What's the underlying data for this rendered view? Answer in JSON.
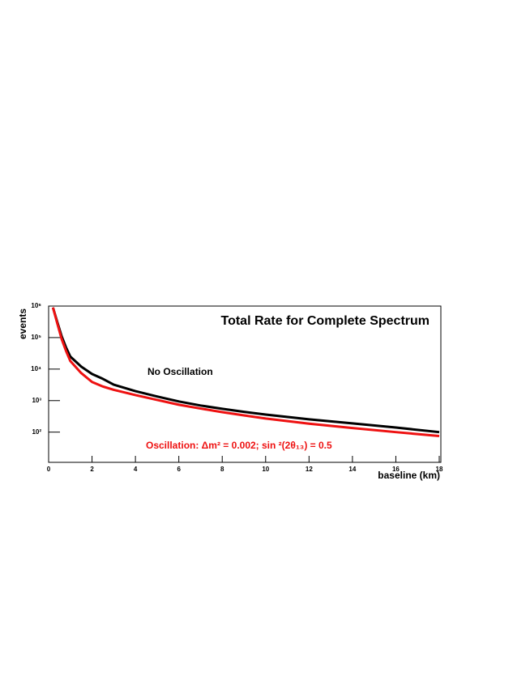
{
  "chart_data": {
    "type": "line",
    "title": "Total Rate for Complete Spectrum",
    "x_label": "baseline (km)",
    "y_label": "events",
    "x": [
      0.2,
      0.4,
      0.6,
      0.8,
      1,
      1.5,
      2,
      2.5,
      3,
      4,
      5,
      6,
      7,
      8,
      9,
      10,
      12,
      14,
      16,
      18
    ],
    "series": [
      {
        "name": "No Oscillation",
        "color": "#000000",
        "values": [
          900000,
          310000,
          110000,
          49000,
          25000,
          12000,
          7000,
          4900,
          3200,
          2000,
          1350,
          940,
          700,
          550,
          440,
          360,
          255,
          190,
          140,
          100
        ]
      },
      {
        "name": "Oscillation:  Δm² = 0.002; sin ²(2θ₁₃) = 0.5",
        "color": "#ee1111",
        "values": [
          900000,
          280000,
          90000,
          38000,
          18000,
          7500,
          3900,
          2800,
          2200,
          1500,
          1050,
          740,
          560,
          430,
          340,
          270,
          185,
          135,
          100,
          75
        ]
      }
    ],
    "xlim": [
      0,
      18
    ],
    "ylim": [
      11,
      1000000
    ],
    "log_y": true,
    "xticks": [
      0,
      2,
      4,
      6,
      8,
      10,
      12,
      14,
      16,
      18
    ],
    "yticks": [
      {
        "value": 100,
        "label": "10²"
      },
      {
        "value": 1000,
        "label": "10³"
      },
      {
        "value": 10000,
        "label": "10⁴"
      },
      {
        "value": 100000,
        "label": "10⁵"
      },
      {
        "value": 1000000,
        "label": "10⁶"
      }
    ]
  }
}
